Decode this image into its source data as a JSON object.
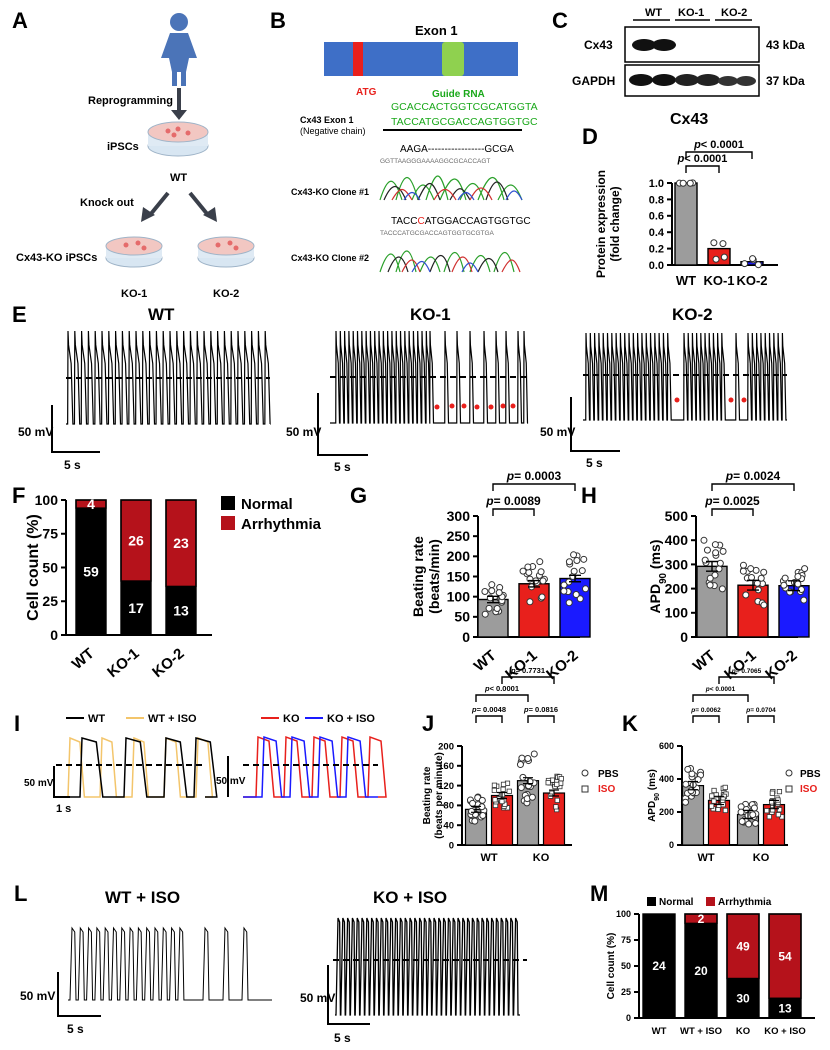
{
  "colors": {
    "black": "#000000",
    "red": "#e8201c",
    "darkred": "#b5121b",
    "gray": "#9c9c9c",
    "blue": "#1a1aff",
    "green": "#1aa81a",
    "exon": "#3e6fc7",
    "orange": "#f3c56b"
  },
  "panels": {
    "A": {
      "label": "A",
      "step1": "Reprogramming",
      "ipscs": "iPSCs",
      "wt": "WT",
      "step2": "Knock out",
      "ko_ipscs": "Cx43-KO iPSCs",
      "ko1": "KO-1",
      "ko2": "KO-2"
    },
    "B": {
      "label": "B",
      "exon": "Exon 1",
      "atg": "ATG",
      "guide_title": "Guide RNA",
      "guide_seq": "GCACCACTGGTCGCATGGTA",
      "exon_label_1": "Cx43 Exon 1",
      "exon_label_2": "(Negative chain)",
      "neg_seq": "TACCATGCGACCAGTGGTGC",
      "clone1_seq": "AAGA-----------------GCGA",
      "clone1_trace_text": "GGTTAAGGGAAAAGGCGCACCAGT",
      "clone1_label": "Cx43-KO Clone #1",
      "clone2_seq_a": "TACC",
      "clone2_seq_c": "C",
      "clone2_seq_b": "ATGGACCAGTGGTGC",
      "clone2_trace_text": "TACCCATGCGACCAGTGGTGCGTGA",
      "clone2_label": "Cx43-KO Clone #2"
    },
    "C": {
      "label": "C",
      "lanes": [
        "WT",
        "KO-1",
        "KO-2"
      ],
      "row1": "Cx43",
      "row1_kda": "43 kDa",
      "row2": "GAPDH",
      "row2_kda": "37 kDa"
    },
    "D": {
      "label": "D",
      "title": "Cx43",
      "p1": "p< 0.0001",
      "p2": "p< 0.0001"
    },
    "E": {
      "label": "E",
      "titles": [
        "WT",
        "KO-1",
        "KO-2"
      ],
      "scale_mv": "50 mV",
      "scale_s": "5 s"
    },
    "F": {
      "label": "F",
      "legend_normal": "Normal",
      "legend_arrhythmia": "Arrhythmia"
    },
    "G": {
      "label": "G",
      "p1": "p= 0.0089",
      "p2": "p= 0.0003"
    },
    "H": {
      "label": "H",
      "p1": "p= 0.0025",
      "p2": "p= 0.0024"
    },
    "I": {
      "label": "I",
      "leg_wt": "WT",
      "leg_wtiso": "WT + ISO",
      "leg_ko": "KO",
      "leg_koiso": "KO + ISO",
      "scale_mv": "50 mV",
      "scale_s": "1 s"
    },
    "J": {
      "label": "J",
      "p_top": "p= 0.7731",
      "p_mid": "p< 0.0001",
      "p_wt": "p= 0.0048",
      "p_ko": "p= 0.0816",
      "leg_pbs": "PBS",
      "leg_iso": "ISO"
    },
    "K": {
      "label": "K",
      "p_top": "p= 0.7065",
      "p_mid": "p< 0.0001",
      "p_wt": "p= 0.0062",
      "p_ko": "p= 0.0704",
      "leg_pbs": "PBS",
      "leg_iso": "ISO"
    },
    "L": {
      "label": "L",
      "title_wt": "WT + ISO",
      "title_ko": "KO + ISO",
      "scale_mv": "50 mV",
      "scale_s": "5 s"
    },
    "M": {
      "label": "M",
      "legend_normal": "Normal",
      "legend_arrhythmia": "Arrhythmia"
    }
  },
  "chart_data": [
    {
      "id": "D",
      "type": "bar",
      "title": "Cx43",
      "categories": [
        "WT",
        "KO-1",
        "KO-2"
      ],
      "values": [
        1.0,
        0.2,
        0.04
      ],
      "ylabel": "Protein expression (fold change)",
      "ylim": [
        0,
        1.0
      ],
      "yticks": [
        "0.0",
        "0.2",
        "0.4",
        "0.6",
        "0.8",
        "1.0"
      ]
    },
    {
      "id": "F",
      "type": "bar",
      "stacked": true,
      "categories": [
        "WT",
        "KO-1",
        "KO-2"
      ],
      "series": [
        {
          "name": "Normal",
          "percent": [
            94,
            40,
            36
          ],
          "counts": [
            "59",
            "17",
            "13"
          ]
        },
        {
          "name": "Arrhythmia",
          "percent": [
            6,
            60,
            64
          ],
          "counts": [
            "4",
            "26",
            "23"
          ]
        }
      ],
      "ylabel": "Cell count (%)",
      "ylim": [
        0,
        100
      ],
      "yticks": [
        "0",
        "25",
        "50",
        "75",
        "100"
      ]
    },
    {
      "id": "G",
      "type": "bar",
      "categories": [
        "WT",
        "KO-1",
        "KO-2"
      ],
      "values": [
        93,
        132,
        145
      ],
      "ylabel": "Beating rate (beats/min)",
      "ylim": [
        0,
        300
      ],
      "yticks": [
        "0",
        "50",
        "100",
        "150",
        "200",
        "250",
        "300"
      ]
    },
    {
      "id": "H",
      "type": "bar",
      "categories": [
        "WT",
        "KO-1",
        "KO-2"
      ],
      "values": [
        292,
        214,
        212
      ],
      "ylabel": "APD90 (ms)",
      "ylim": [
        0,
        500
      ],
      "yticks": [
        "0",
        "100",
        "200",
        "300",
        "400",
        "500"
      ]
    },
    {
      "id": "J",
      "type": "bar",
      "groups": [
        "WT",
        "KO"
      ],
      "series": [
        {
          "name": "PBS",
          "values": [
            72,
            130
          ]
        },
        {
          "name": "ISO",
          "values": [
            100,
            105
          ]
        }
      ],
      "ylabel": "Beating rate (beats per minute)",
      "ylim": [
        0,
        200
      ],
      "yticks": [
        "0",
        "40",
        "80",
        "120",
        "160",
        "200"
      ]
    },
    {
      "id": "K",
      "type": "bar",
      "groups": [
        "WT",
        "KO"
      ],
      "series": [
        {
          "name": "PBS",
          "values": [
            360,
            185
          ]
        },
        {
          "name": "ISO",
          "values": [
            270,
            245
          ]
        }
      ],
      "ylabel": "APD90 (ms)",
      "ylim": [
        0,
        600
      ],
      "yticks": [
        "0",
        "200",
        "400",
        "600"
      ]
    },
    {
      "id": "M",
      "type": "bar",
      "stacked": true,
      "categories": [
        "WT",
        "WT + ISO",
        "KO",
        "KO + ISO"
      ],
      "series": [
        {
          "name": "Normal",
          "percent": [
            100,
            91,
            38,
            19
          ],
          "counts": [
            "24",
            "20",
            "30",
            "13"
          ]
        },
        {
          "name": "Arrhythmia",
          "percent": [
            0,
            9,
            62,
            81
          ],
          "counts": [
            "",
            "2",
            "49",
            "54"
          ]
        }
      ],
      "ylabel": "Cell count (%)",
      "ylim": [
        0,
        100
      ],
      "yticks": [
        "0",
        "25",
        "50",
        "75",
        "100"
      ]
    }
  ]
}
